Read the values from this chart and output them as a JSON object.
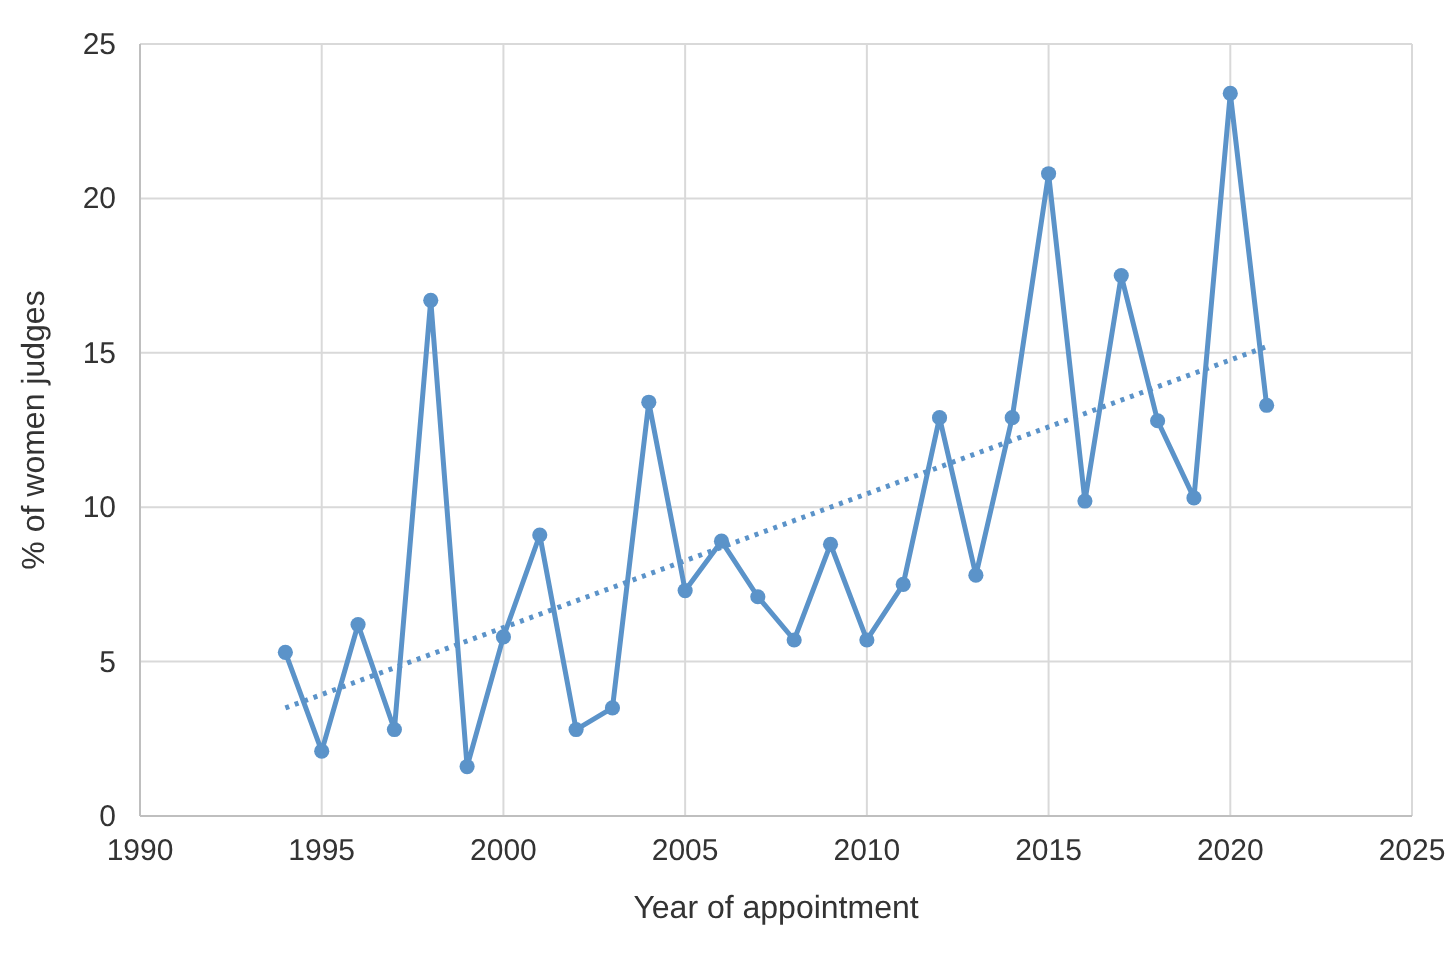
{
  "chart_data": {
    "type": "line",
    "xlabel": "Year of appointment",
    "ylabel": "% of women judges",
    "xlim": [
      1990,
      2025
    ],
    "xticks": [
      1990,
      1995,
      2000,
      2005,
      2010,
      2015,
      2020,
      2025
    ],
    "ylim": [
      0,
      25
    ],
    "yticks": [
      0,
      5,
      10,
      15,
      20,
      25
    ],
    "grid": true,
    "series": [
      {
        "color": "#5b93c9",
        "marker": "circle",
        "line_style": "solid",
        "x": [
          1994,
          1995,
          1996,
          1997,
          1998,
          1999,
          2000,
          2001,
          2002,
          2003,
          2004,
          2005,
          2006,
          2007,
          2008,
          2009,
          2010,
          2011,
          2012,
          2013,
          2014,
          2015,
          2016,
          2017,
          2018,
          2019,
          2020,
          2021
        ],
        "values": [
          5.3,
          2.1,
          6.2,
          2.8,
          16.7,
          1.6,
          5.8,
          9.1,
          2.8,
          3.5,
          13.4,
          7.3,
          8.9,
          7.1,
          5.7,
          8.8,
          5.7,
          7.5,
          12.9,
          7.8,
          12.9,
          20.8,
          10.2,
          17.5,
          12.8,
          10.3,
          23.4,
          13.3
        ]
      },
      {
        "type": "line",
        "color": "#5b93c9",
        "marker": "none",
        "line_style": "dotted",
        "x": [
          1994,
          2021
        ],
        "values": [
          3.5,
          15.2
        ]
      }
    ]
  }
}
